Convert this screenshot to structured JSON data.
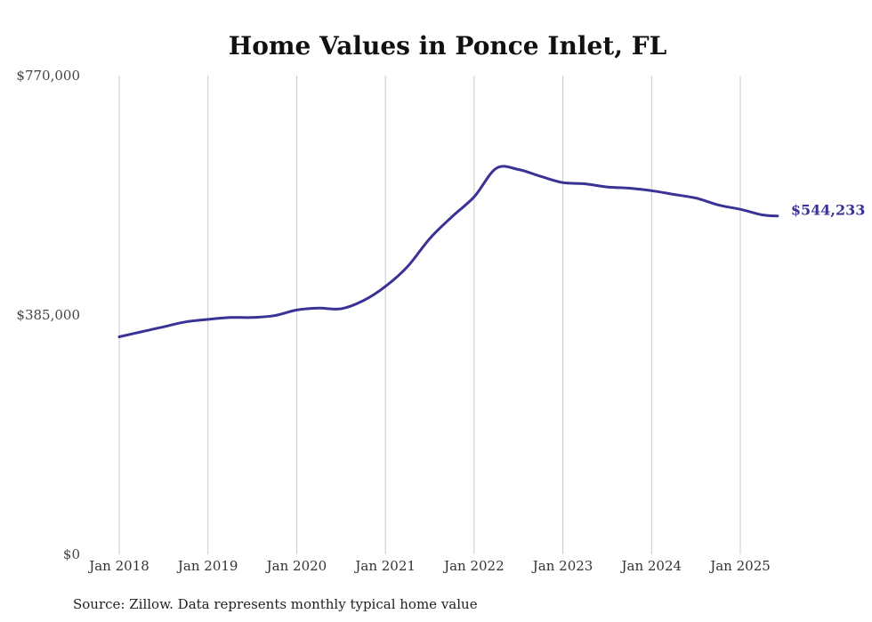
{
  "chart_data": {
    "type": "line",
    "title": "Home Values in Ponce Inlet, FL",
    "xlabel": "",
    "ylabel": "",
    "y_ticks": [
      "$770,000",
      "$385,000",
      "$0"
    ],
    "y_tick_values": [
      770000,
      385000,
      0
    ],
    "ylim": [
      0,
      770000
    ],
    "x_ticks": [
      "Jan 2018",
      "Jan 2019",
      "Jan 2020",
      "Jan 2021",
      "Jan 2022",
      "Jan 2023",
      "Jan 2024",
      "Jan 2025"
    ],
    "x_tick_values": [
      2018.0,
      2019.0,
      2020.0,
      2021.0,
      2022.0,
      2023.0,
      2024.0,
      2025.0
    ],
    "xlim": [
      2018.0,
      2025.42
    ],
    "grid": "vertical",
    "line_color": "#3a3294",
    "series": [
      {
        "x": [
          2018.0,
          2018.25,
          2018.5,
          2018.75,
          2019.0,
          2019.25,
          2019.5,
          2019.75,
          2020.0,
          2020.25,
          2020.5,
          2020.75,
          2021.0,
          2021.25,
          2021.5,
          2021.75,
          2022.0,
          2022.25,
          2022.5,
          2022.75,
          2023.0,
          2023.25,
          2023.5,
          2023.75,
          2024.0,
          2024.25,
          2024.5,
          2024.75,
          2025.0,
          2025.25,
          2025.42
        ],
        "y": [
          350000,
          358000,
          366000,
          374000,
          378000,
          381000,
          381000,
          384000,
          393000,
          396000,
          395000,
          408000,
          431000,
          463000,
          508000,
          543000,
          575000,
          621000,
          619000,
          608000,
          598000,
          596000,
          591000,
          589000,
          585000,
          579000,
          573000,
          562000,
          555000,
          546000,
          544233
        ]
      }
    ],
    "end_label": "$544,233",
    "source": "Source: Zillow. Data represents monthly typical home value"
  }
}
